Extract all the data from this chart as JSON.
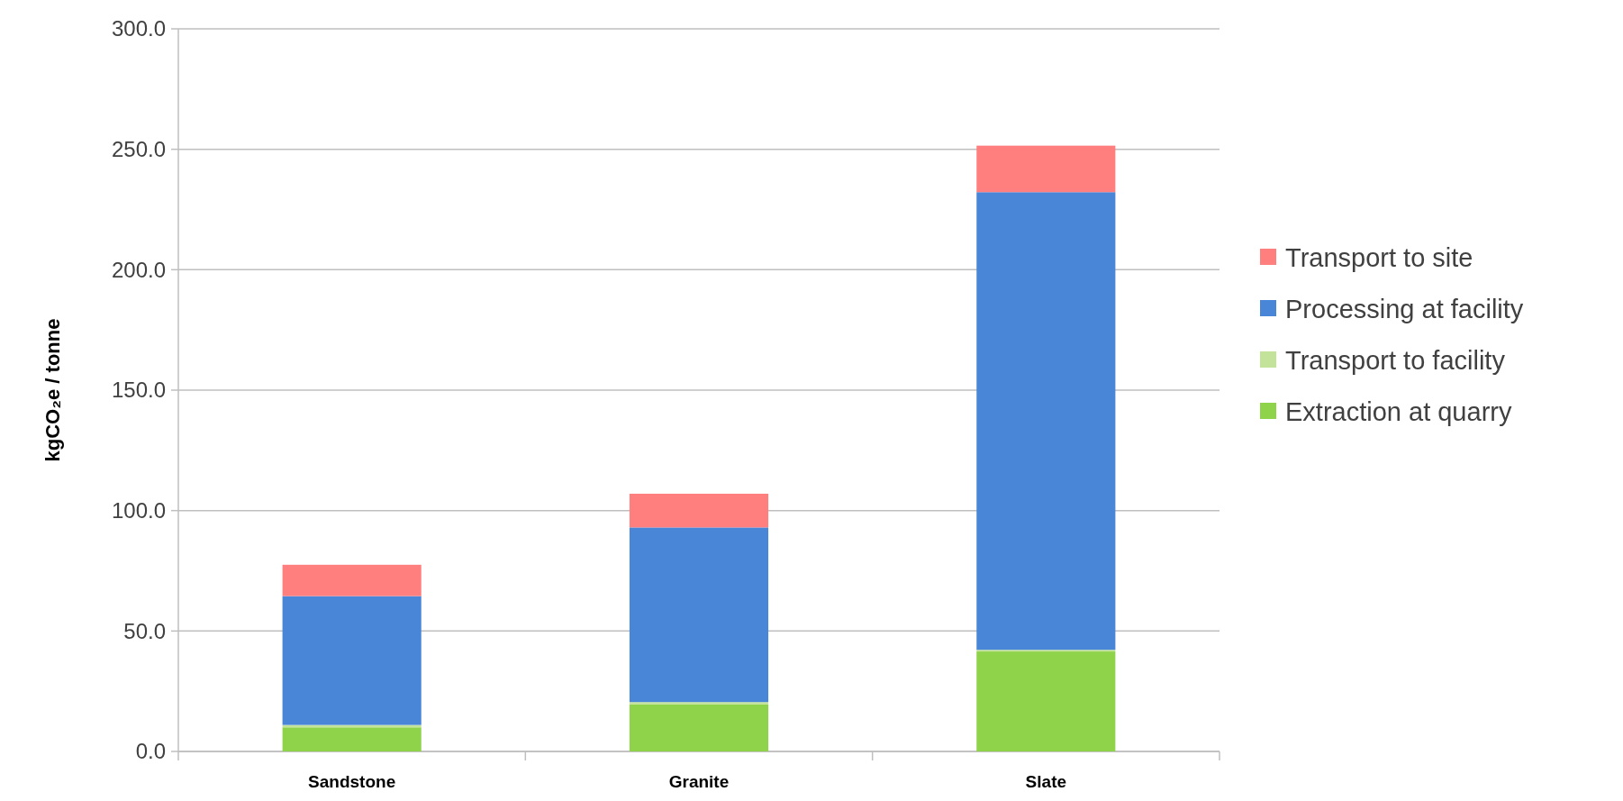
{
  "chart_data": {
    "type": "bar",
    "stacked": true,
    "ylabel": "kgCO₂e / tonne",
    "categories": [
      "Sandstone",
      "Granite",
      "Slate"
    ],
    "series": [
      {
        "name": "Extraction at quarry",
        "color": "#8ed34a",
        "values": [
          10,
          19.5,
          41.5
        ]
      },
      {
        "name": "Transport to facility",
        "color": "#c3e39a",
        "values": [
          1,
          1,
          0.7
        ]
      },
      {
        "name": "Processing at facility",
        "color": "#4a86d8",
        "values": [
          53.5,
          72.5,
          190
        ]
      },
      {
        "name": "Transport to site",
        "color": "#ff7f7f",
        "values": [
          13,
          14,
          19.3
        ]
      }
    ],
    "ylim": [
      0,
      300
    ],
    "yticks": [
      {
        "value": 0,
        "label": "0.0"
      },
      {
        "value": 50,
        "label": "50.0"
      },
      {
        "value": 100,
        "label": "100.0"
      },
      {
        "value": 150,
        "label": "150.0"
      },
      {
        "value": 200,
        "label": "200.0"
      },
      {
        "value": 250,
        "label": "250.0"
      },
      {
        "value": 300,
        "label": "300.0"
      }
    ],
    "grid": "y",
    "legend": "right"
  }
}
